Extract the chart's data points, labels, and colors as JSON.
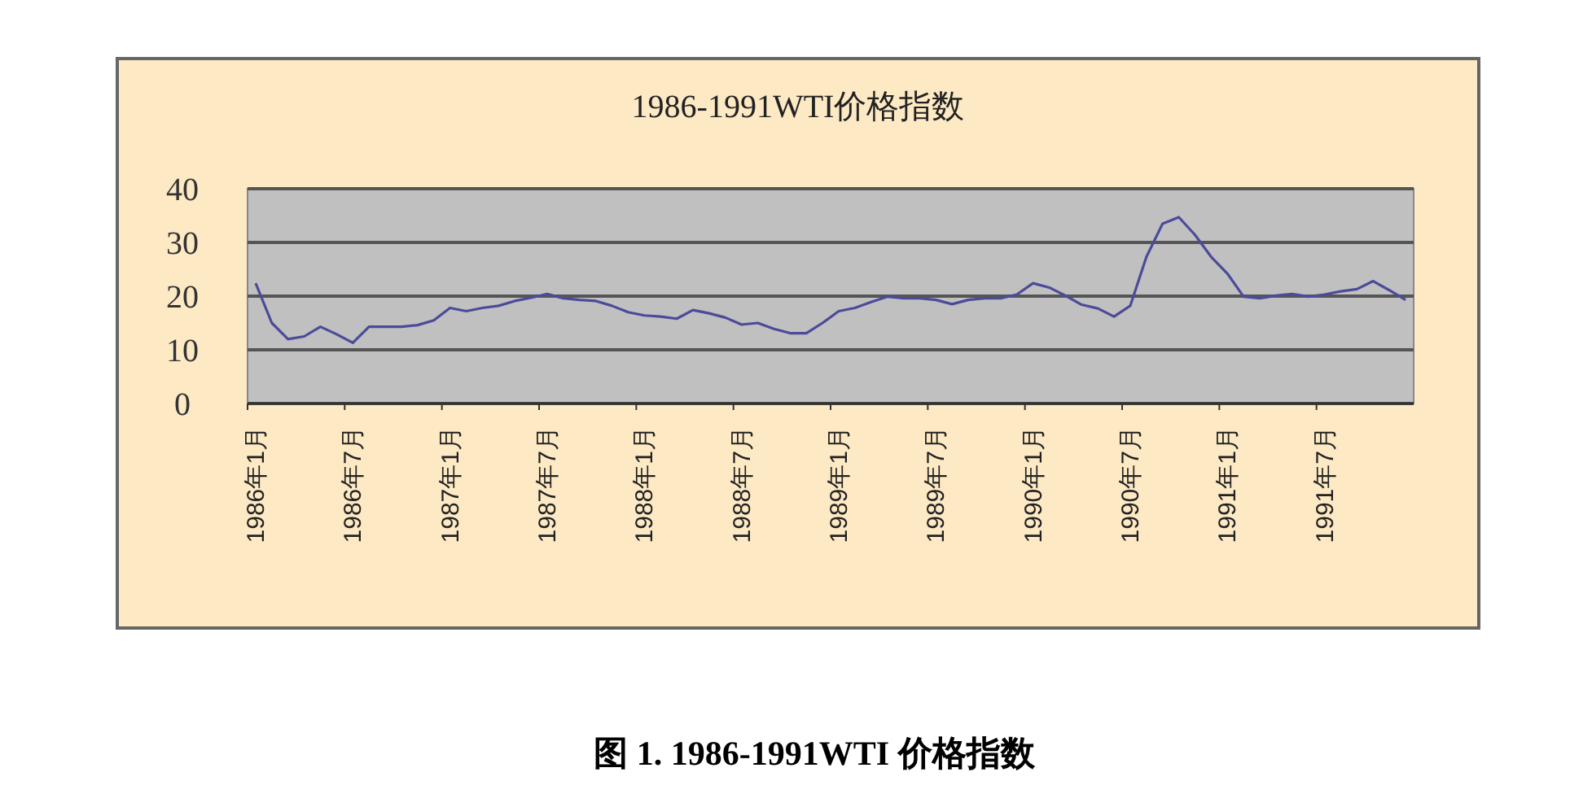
{
  "chart_data": {
    "type": "line",
    "title": "1986-1991WTI价格指数",
    "categories": [
      "1986年1月",
      null,
      null,
      null,
      null,
      null,
      "1986年7月",
      null,
      null,
      null,
      null,
      null,
      "1987年1月",
      null,
      null,
      null,
      null,
      null,
      "1987年7月",
      null,
      null,
      null,
      null,
      null,
      "1988年1月",
      null,
      null,
      null,
      null,
      null,
      "1988年7月",
      null,
      null,
      null,
      null,
      null,
      "1989年1月",
      null,
      null,
      null,
      null,
      null,
      "1989年7月",
      null,
      null,
      null,
      null,
      null,
      "1990年1月",
      null,
      null,
      null,
      null,
      null,
      "1990年7月",
      null,
      null,
      null,
      null,
      null,
      "1991年1月",
      null,
      null,
      null,
      null,
      null,
      "1991年7月",
      null,
      null,
      null,
      null,
      null
    ],
    "series": [
      {
        "color": "#4b4b9a",
        "values": [
          22.4,
          15,
          12,
          12.5,
          14.3,
          12.9,
          11.3,
          14.3,
          14.3,
          14.3,
          14.6,
          15.5,
          17.8,
          17.2,
          17.8,
          18.2,
          19.1,
          19.7,
          20.4,
          19.6,
          19.3,
          19.1,
          18.2,
          17,
          16.4,
          16.2,
          15.8,
          17.4,
          16.8,
          16,
          14.7,
          15,
          13.9,
          13.1,
          13.1,
          15,
          17.2,
          17.8,
          18.9,
          19.9,
          19.6,
          19.6,
          19.3,
          18.5,
          19.3,
          19.6,
          19.6,
          20.3,
          22.4,
          21.6,
          20.1,
          18.4,
          17.7,
          16.2,
          18.2,
          27.3,
          33.5,
          34.7,
          31.4,
          27.3,
          24.2,
          19.9,
          19.6,
          20.1,
          20.4,
          19.9,
          20.3,
          20.9,
          21.3,
          22.8,
          21.1,
          19.3
        ]
      }
    ],
    "ylim": [
      0,
      40
    ],
    "yticks": [
      0,
      10,
      20,
      30,
      40
    ],
    "grid": "y",
    "marker": "none",
    "line_style": "solid",
    "annotations": [
      "图 1. 1986-1991WTI 价格指数"
    ]
  }
}
